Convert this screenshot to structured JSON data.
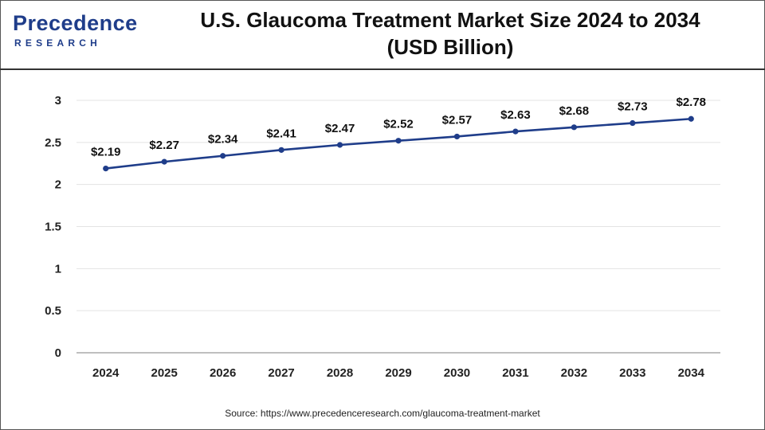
{
  "brand": {
    "logo_top": "recedence",
    "logo_letter": "P",
    "logo_bottom": "RESEARCH",
    "color": "#1f3d8a"
  },
  "title_line1": "U.S. Glaucoma Treatment Market Size 2024 to 2034",
  "title_line2": "(USD Billion)",
  "source": "Source: https://www.precedenceresearch.com/glaucoma-treatment-market",
  "chart_data": {
    "type": "line",
    "x": [
      "2024",
      "2025",
      "2026",
      "2027",
      "2028",
      "2029",
      "2030",
      "2031",
      "2032",
      "2033",
      "2034"
    ],
    "series": [
      {
        "values": [
          2.19,
          2.27,
          2.34,
          2.41,
          2.47,
          2.52,
          2.57,
          2.63,
          2.68,
          2.73,
          2.78
        ],
        "labels": [
          "$2.19",
          "$2.27",
          "$2.34",
          "$2.41",
          "$2.47",
          "$2.52",
          "$2.57",
          "$2.63",
          "$2.68",
          "$2.73",
          "$2.78"
        ],
        "color": "#1f3d8a"
      }
    ],
    "ylim": [
      0,
      3
    ],
    "yticks": [
      "0",
      "0.5",
      "1",
      "1.5",
      "2",
      "2.5",
      "3"
    ],
    "grid": true,
    "xlabel": "",
    "ylabel": ""
  }
}
